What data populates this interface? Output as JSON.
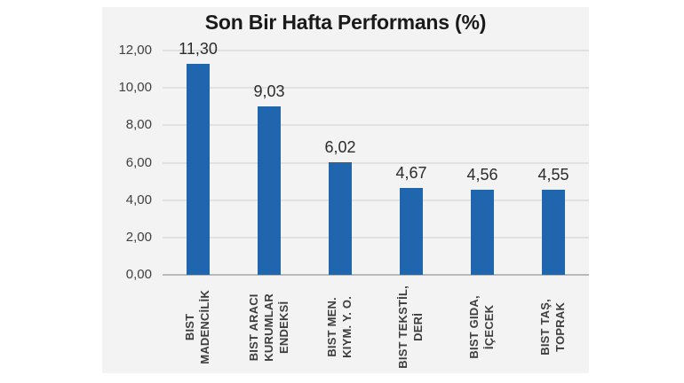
{
  "chart": {
    "title": "Son Bir Hafta Performans (%)"
  },
  "chart_data": {
    "type": "bar",
    "title": "Son Bir Hafta Performans (%)",
    "categories": [
      "BIST MADENCİLİK",
      "BIST ARACI KURUMLAR ENDEKSİ",
      "BIST MEN. KIYM. Y. O.",
      "BIST TEKSTİL, DERİ",
      "BIST GIDA, İÇECEK",
      "BIST TAŞ, TOPRAK"
    ],
    "category_lines": [
      [
        "BIST",
        "MADENCİLİK"
      ],
      [
        "BIST ARACI",
        "KURUMLAR",
        "ENDEKSİ"
      ],
      [
        "BIST MEN.",
        "KIYM. Y. O."
      ],
      [
        "BIST TEKSTİL,",
        "DERİ"
      ],
      [
        "BIST GIDA,",
        "İÇECEK"
      ],
      [
        "BIST TAŞ,",
        "TOPRAK"
      ]
    ],
    "values": [
      11.3,
      9.03,
      6.02,
      4.67,
      4.56,
      4.55
    ],
    "value_labels": [
      "11,30",
      "9,03",
      "6,02",
      "4,67",
      "4,56",
      "4,55"
    ],
    "xlabel": "",
    "ylabel": "",
    "ylim": [
      0,
      12
    ],
    "y_step": 2,
    "y_tick_labels_top_to_bottom": [
      "12,00",
      "10,00",
      "8,00",
      "6,00",
      "4,00",
      "2,00",
      "0,00"
    ],
    "grid": "horizontal",
    "legend": "none",
    "bar_color": "#1f66ae",
    "plot_background": "#f3f3f3"
  }
}
